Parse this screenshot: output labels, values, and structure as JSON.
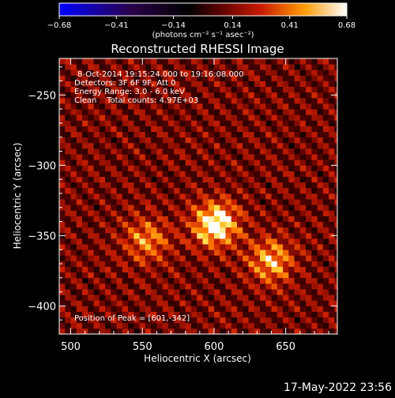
{
  "chart_data": {
    "type": "heatmap",
    "title": "Reconstructed RHESSI Image",
    "xlabel": "Heliocentric X (arcsec)",
    "ylabel": "Heliocentric Y (arcsec)",
    "xlim": [
      492,
      686
    ],
    "ylim": [
      -420,
      -224
    ],
    "x_ticks": [
      500,
      550,
      600,
      650
    ],
    "y_ticks": [
      -250,
      -300,
      -350,
      -400
    ],
    "colorbar": {
      "ticks": [
        -0.68,
        -0.41,
        -0.14,
        0.14,
        0.41,
        0.68
      ],
      "tick_labels": [
        "−0.68",
        "−0.41",
        "−0.14",
        "0.14",
        "0.41",
        "0.68"
      ],
      "range": [
        -0.68,
        0.68
      ],
      "colormap": "blue-black-red-yellow-white",
      "units_label": "(photons cm⁻² s⁻¹ asec⁻²)"
    },
    "annotations": [
      "8-Oct-2014 19:15:24.000 to 19:16:08.000",
      "Detectors: 3F 6F 9F, Att 0",
      "Energy Range: 3.0 - 6.0 keV",
      "Clean    Total counts: 4.97E+03"
    ],
    "peak": {
      "label": "Position of Peak = [601,-342]",
      "x": 601,
      "y": -342
    },
    "sources": [
      {
        "x": 601,
        "y": -342,
        "intensity": 0.68
      },
      {
        "x": 640,
        "y": -368,
        "intensity": 0.45
      },
      {
        "x": 553,
        "y": -353,
        "intensity": 0.38
      }
    ]
  },
  "footer": {
    "timestamp": "17-May-2022 23:56"
  }
}
